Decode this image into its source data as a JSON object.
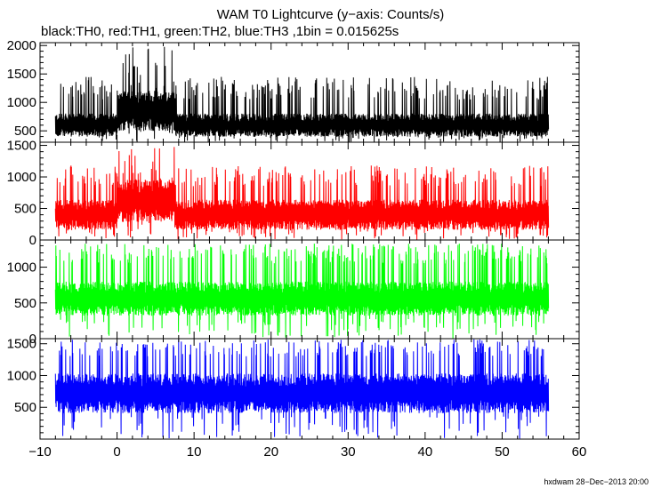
{
  "header": {
    "title": "WAM T0 Lightcurve (y−axis: Counts/s)",
    "subtitle": "black:TH0, red:TH1, green:TH2, blue:TH3 ,1bin = 0.015625s"
  },
  "footer": {
    "credit": "hxdwam 28−Dec−2013 20:00"
  },
  "chart_data": {
    "type": "line",
    "x_axis": {
      "range": [
        -10,
        60
      ],
      "ticks": [
        -10,
        0,
        10,
        20,
        30,
        40,
        50,
        60
      ],
      "tick_labels": [
        "−10",
        "0",
        "10",
        "20",
        "30",
        "40",
        "50",
        "60"
      ]
    },
    "x_data_range": [
      -8,
      56
    ],
    "bin_s": 0.015625,
    "grid": false,
    "legend": "none",
    "series": [
      {
        "name": "TH0",
        "color": "#000000",
        "ylim": [
          300,
          2050
        ],
        "yticks": [
          500,
          1000,
          1500,
          2000
        ],
        "baseline": 600,
        "noise": 170,
        "peak_min": 1050,
        "peak_max": 1450,
        "min_floor": 300,
        "burst": {
          "start": 0,
          "end": 7.5,
          "level": 850,
          "noise": 300,
          "peak_max": 2050
        }
      },
      {
        "name": "TH1",
        "color": "#ff0000",
        "ylim": [
          0,
          1550
        ],
        "yticks": [
          0,
          500,
          1000,
          1500
        ],
        "baseline": 400,
        "noise": 200,
        "peak_min": 850,
        "peak_max": 1180,
        "min_floor": 0,
        "burst": {
          "start": 0,
          "end": 7.5,
          "level": 620,
          "noise": 280,
          "peak_max": 1500
        }
      },
      {
        "name": "TH2",
        "color": "#00ff00",
        "ylim": [
          0,
          1380
        ],
        "yticks": [
          0,
          500,
          1000
        ],
        "baseline": 560,
        "noise": 200,
        "peak_min": 1050,
        "peak_max": 1330,
        "min_floor": 0
      },
      {
        "name": "TH3",
        "color": "#0000ff",
        "ylim": [
          0,
          1580
        ],
        "yticks": [
          500,
          1000,
          1500
        ],
        "baseline": 720,
        "noise": 260,
        "peak_min": 1300,
        "peak_max": 1570,
        "min_floor": 0
      }
    ]
  }
}
